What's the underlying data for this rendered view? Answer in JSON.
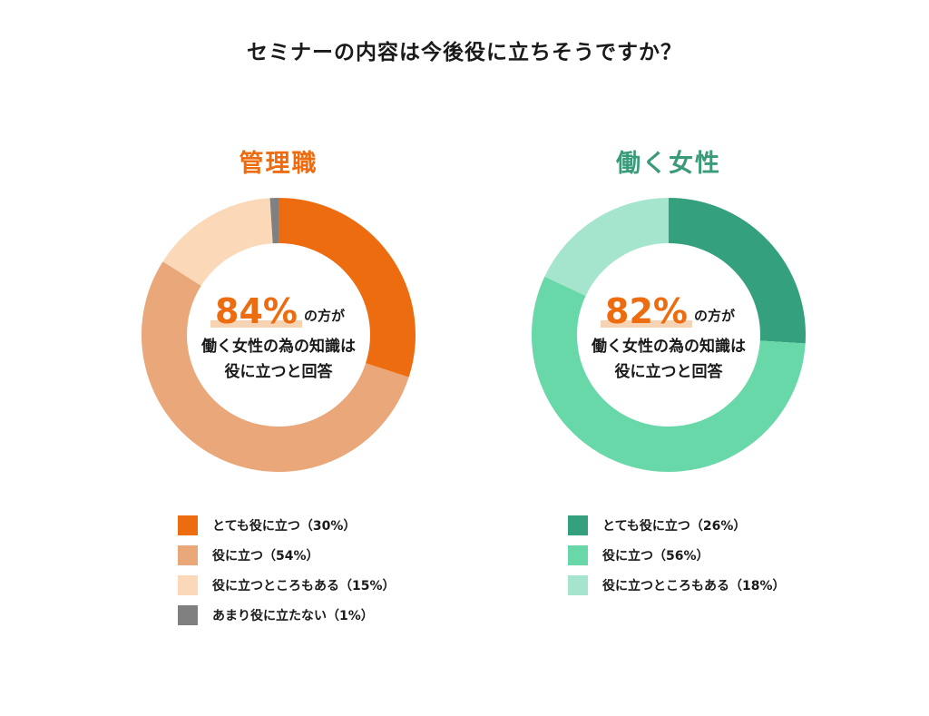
{
  "title": "セミナーの内容は今後役に立ちそうですか？",
  "chart_data": [
    {
      "type": "pie",
      "title": "管理職",
      "title_color": "#ee6c10",
      "highlight": {
        "value": "84%",
        "color": "#ee6c10",
        "highlight_color": "#f6d3b3",
        "tail": "の方が",
        "lines": [
          "働く女性の為の知識は",
          "役に立つと回答"
        ]
      },
      "slices": [
        {
          "label": "とても役に立つ（30%）",
          "value": 30,
          "color": "#ee6c10"
        },
        {
          "label": "役に立つ（54%）",
          "value": 54,
          "color": "#e9a77a"
        },
        {
          "label": "役に立つところもある（15%）",
          "value": 15,
          "color": "#fad8b8"
        },
        {
          "label": "あまり役に立たない（1%）",
          "value": 1,
          "color": "#808080"
        }
      ]
    },
    {
      "type": "pie",
      "title": "働く女性",
      "title_color": "#3a9a7a",
      "highlight": {
        "value": "82%",
        "color": "#ee6c10",
        "highlight_color": "#f6d3b3",
        "tail": "の方が",
        "lines": [
          "働く女性の為の知識は",
          "役に立つと回答"
        ]
      },
      "slices": [
        {
          "label": "とても役に立つ（26%）",
          "value": 26,
          "color": "#35a07d"
        },
        {
          "label": "役に立つ（56%）",
          "value": 56,
          "color": "#68d8a8"
        },
        {
          "label": "役に立つところもある（18%）",
          "value": 18,
          "color": "#a5e4cd"
        }
      ]
    }
  ]
}
